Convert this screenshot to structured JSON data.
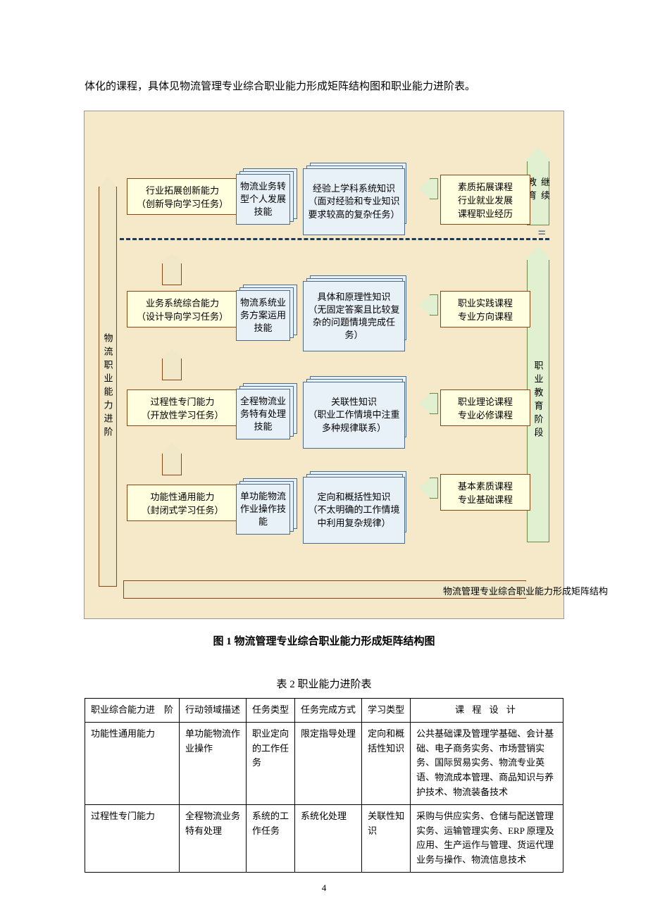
{
  "intro_text": "体化的课程，具体见物流管理专业综合职业能力形成矩阵结构图和职业能力进阶表。",
  "figure": {
    "background_color": "#f5e9ca",
    "yellow_box_fill": "#ffffe0",
    "yellow_box_border": "#8b4513",
    "stack_fill": "#e8f0f8",
    "stack_border": "#4a6a8a",
    "green_fill": "#e0f0d0",
    "green_border": "#6a8a4a",
    "left_axis_label": "物流职业能力进阶",
    "bottom_axis_label": "物流管理专业综合职业能力形成矩阵结构",
    "top_big_arrow_label": "继续教育",
    "side_big_arrow_label": "职业教育阶段",
    "rows": [
      {
        "yellow": "行业拓展创新能力\n（创新导向学习任务）",
        "skill": "物流业务转型个人发展技能",
        "knowledge": "经验上学科系统知识\n（面对经验和专业知识要求较高的复杂任务）",
        "course": "素质拓展课程\n行业就业发展\n课程职业经历"
      },
      {
        "yellow": "业务系统综合能力\n（设计导向学习任务）",
        "skill": "物流系统业务方案运用技能",
        "knowledge": "具体和原理性知识\n（无固定答案且比较复杂的问题情境完成任务）",
        "course": "职业实践课程\n专业方向课程"
      },
      {
        "yellow": "过程性专门能力\n（开放性学习任务）",
        "skill": "全程物流业务特有处理技能",
        "knowledge": "关联性知识\n（职业工作情境中注重多种规律联系）",
        "course": "职业理论课程\n专业必修课程"
      },
      {
        "yellow": "功能性通用能力\n（封闭式学习任务）",
        "skill": "单功能物流作业操作技能",
        "knowledge": "定向和概括性知识\n（不太明确的工作情境中利用复杂规律）",
        "course": "基本素质课程\n专业基础课程"
      }
    ]
  },
  "figure_caption": "图 1  物流管理专业综合职业能力形成矩阵结构图",
  "table_title": "表 2  职业能力进阶表",
  "table": {
    "headers": [
      "职业综合能力进 阶",
      "行动领域描述",
      "任务类型",
      "任务完成方式",
      "学习类型",
      "课 程 设 计"
    ],
    "rows": [
      [
        "功能性通用能力",
        "单功能物流作业操作",
        "职业定向的工作任务",
        "限定指导处理",
        "定向和概括性知识",
        "公共基础课及管理学基础、会计基础、电子商务实务、市场营销实务、国际贸易实务、物流专业英语、物流成本管理、商品知识与养护技术、物流装备技术"
      ],
      [
        "过程性专门能力",
        "全程物流业务特有处理",
        "系统的工作任务",
        "系统化处理",
        "关联性知识",
        "采购与供应实务、仓储与配送管理实务、运输管理实务、ERP 原理及应用、生产运作与管理、货运代理业务与操作、物流信息技术"
      ]
    ]
  },
  "page_number": "4"
}
